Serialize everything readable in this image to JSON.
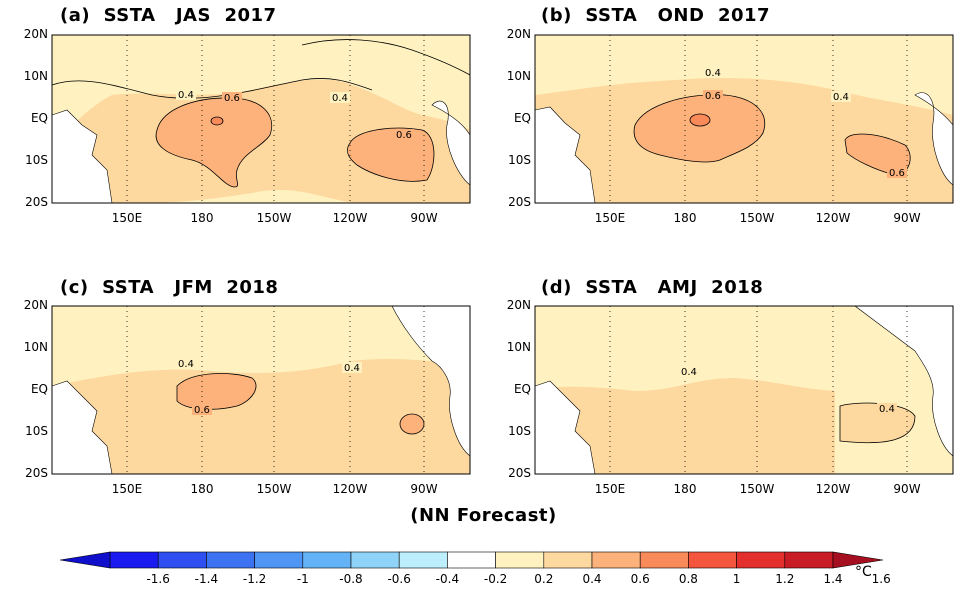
{
  "panels": [
    {
      "title": "(a)  SSTA   JAS  2017",
      "contours": [
        "0.4",
        "0.6",
        "0.4",
        "0.6"
      ]
    },
    {
      "title": "(b)  SSTA   OND  2017",
      "contours": [
        "0.4",
        "0.6",
        "0.4",
        "0.6"
      ]
    },
    {
      "title": "(c)  SSTA   JFM  2018",
      "contours": [
        "0.4",
        "0.4",
        "0.6"
      ]
    },
    {
      "title": "(d)  SSTA   AMJ  2018",
      "contours": [
        "0.4",
        "0.4"
      ]
    }
  ],
  "y_ticks": [
    "20N",
    "10N",
    "EQ",
    "10S",
    "20S"
  ],
  "x_ticks": [
    "150E",
    "180",
    "150W",
    "120W",
    "90W"
  ],
  "footer": "(NN Forecast)",
  "colorbar": {
    "ticks": [
      "-1.6",
      "-1.4",
      "-1.2",
      "-1",
      "-0.8",
      "-0.6",
      "-0.4",
      "-0.2",
      "0.2",
      "0.4",
      "0.6",
      "0.8",
      "1",
      "1.2",
      "1.4",
      "1.6"
    ],
    "unit": "°C",
    "colors": [
      "#1a1aee",
      "#2f4ff0",
      "#3d72f2",
      "#4f95f4",
      "#64b3f6",
      "#8fd3f8",
      "#bdeefc",
      "#ffffff",
      "#fff2c0",
      "#fdd9a0",
      "#fcb27a",
      "#f98a5a",
      "#f4553d",
      "#e3302c",
      "#c91d26"
    ],
    "left_cap_color": "#1010cc",
    "right_cap_color": "#a50f20"
  },
  "colors": {
    "sst_02_04": "#fff2c0",
    "sst_04_06": "#fdd9a0",
    "sst_06_08": "#fcb27a",
    "land": "#ffffff"
  }
}
